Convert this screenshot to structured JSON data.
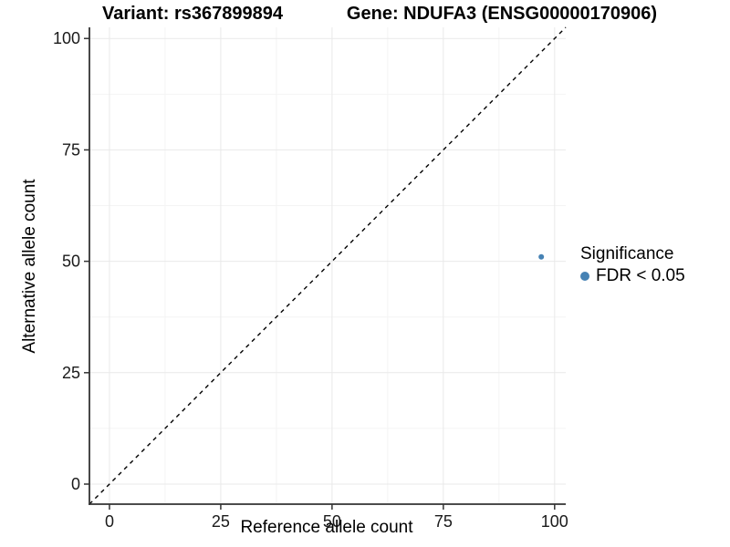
{
  "titles": {
    "variant": "Variant: rs367899894",
    "gene": "Gene: NDUFA3 (ENSG00000170906)"
  },
  "chart_data": {
    "type": "scatter",
    "xlabel": "Reference allele count",
    "ylabel": "Alternative allele count",
    "xlim": [
      -4.5,
      102.5
    ],
    "ylim": [
      -4.5,
      102.5
    ],
    "x_ticks": [
      0,
      25,
      50,
      75,
      100
    ],
    "x_tick_labels": [
      "0",
      "25",
      "50",
      "75",
      "100"
    ],
    "y_ticks": [
      0,
      25,
      50,
      75,
      100
    ],
    "y_tick_labels": [
      "0",
      "25",
      "50",
      "75",
      "100"
    ],
    "minor_ticks": [
      12.5,
      37.5,
      62.5,
      87.5
    ],
    "grid": true,
    "reference_line": {
      "kind": "y-equals-x",
      "style": "dashed",
      "color": "#000000"
    },
    "series": [
      {
        "name": "FDR < 0.05",
        "color": "#4682b4",
        "points": [
          {
            "x": 97,
            "y": 51
          }
        ]
      }
    ]
  },
  "legend": {
    "title": "Significance",
    "items": [
      {
        "label": "FDR < 0.05",
        "color": "#4682b4"
      }
    ]
  },
  "colors": {
    "background": "#ffffff",
    "grid_major": "#e9e9e9",
    "grid_minor": "#f4f4f4",
    "axis_line": "#333333",
    "tick_mark": "#333333",
    "tick_text": "#1a1a1a",
    "point": "#4682b4"
  }
}
